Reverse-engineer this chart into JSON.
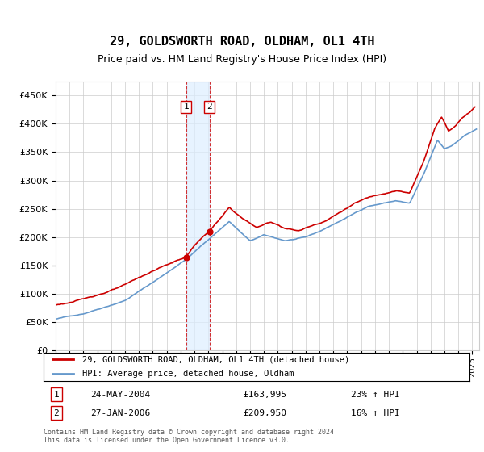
{
  "title": "29, GOLDSWORTH ROAD, OLDHAM, OL1 4TH",
  "subtitle": "Price paid vs. HM Land Registry's House Price Index (HPI)",
  "legend_line1": "29, GOLDSWORTH ROAD, OLDHAM, OL1 4TH (detached house)",
  "legend_line2": "HPI: Average price, detached house, Oldham",
  "transaction1_label": "1",
  "transaction1_date": "24-MAY-2004",
  "transaction1_price": "£163,995",
  "transaction1_hpi": "23% ↑ HPI",
  "transaction1_x": 2004.39,
  "transaction1_y": 163995,
  "transaction2_label": "2",
  "transaction2_date": "27-JAN-2006",
  "transaction2_price": "£209,950",
  "transaction2_hpi": "16% ↑ HPI",
  "transaction2_x": 2006.07,
  "transaction2_y": 209950,
  "footer": "Contains HM Land Registry data © Crown copyright and database right 2024.\nThis data is licensed under the Open Government Licence v3.0.",
  "ylim": [
    0,
    475000
  ],
  "xlim_start": 1995,
  "xlim_end": 2025.5,
  "hpi_color": "#6699cc",
  "price_color": "#cc0000",
  "grid_color": "#cccccc",
  "bg_color": "#ffffff",
  "shade_color": "#ddeeff"
}
